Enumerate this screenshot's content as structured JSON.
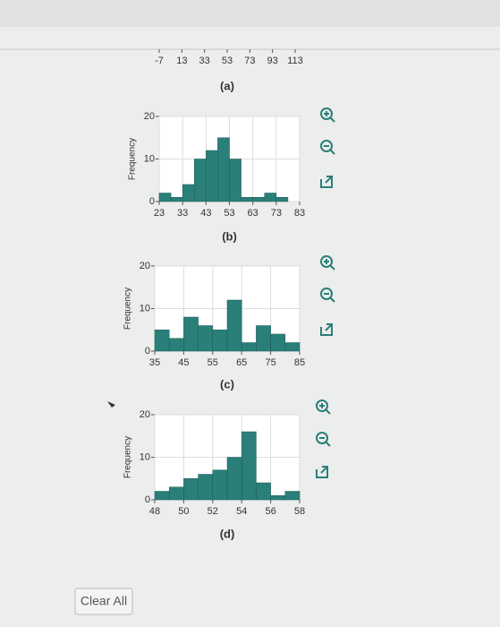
{
  "chart_data": [
    {
      "type": "axis",
      "caption": "(a)",
      "xlim": [
        -7,
        113
      ],
      "xticks": [
        -7,
        13,
        33,
        53,
        73,
        93,
        113
      ]
    },
    {
      "type": "histogram",
      "caption": "(b)",
      "ylabel": "Frequency",
      "color": "#2a7f79",
      "grid": true,
      "bins": [
        23,
        28,
        33,
        38,
        43,
        48,
        53,
        58,
        63,
        68,
        73,
        78,
        83
      ],
      "values": [
        2,
        1,
        4,
        10,
        12,
        15,
        10,
        1,
        1,
        2,
        1,
        0
      ],
      "xlim": [
        23,
        83
      ],
      "xticks": [
        23,
        33,
        43,
        53,
        63,
        73,
        83
      ],
      "ylim": [
        0,
        20
      ],
      "yticks": [
        0,
        10,
        20
      ]
    },
    {
      "type": "histogram",
      "caption": "(c)",
      "ylabel": "Frequency",
      "color": "#2a7f79",
      "grid": true,
      "bins": [
        35,
        40,
        45,
        50,
        55,
        60,
        65,
        70,
        75,
        80,
        85
      ],
      "values": [
        5,
        3,
        8,
        6,
        5,
        12,
        2,
        6,
        4,
        2
      ],
      "xlim": [
        35,
        85
      ],
      "xticks": [
        35,
        45,
        55,
        65,
        75,
        85
      ],
      "ylim": [
        0,
        20
      ],
      "yticks": [
        0,
        10,
        20
      ]
    },
    {
      "type": "histogram",
      "caption": "(d)",
      "ylabel": "Frequency",
      "color": "#2a7f79",
      "grid": true,
      "bins": [
        48,
        49,
        50,
        51,
        52,
        53,
        54,
        55,
        56,
        57,
        58
      ],
      "values": [
        2,
        3,
        5,
        6,
        7,
        10,
        16,
        4,
        1,
        2
      ],
      "xlim": [
        48,
        58
      ],
      "xticks": [
        48,
        50,
        52,
        54,
        56,
        58
      ],
      "ylim": [
        0,
        20
      ],
      "yticks": [
        0,
        10,
        20
      ]
    }
  ],
  "clear_button": "Clear All"
}
